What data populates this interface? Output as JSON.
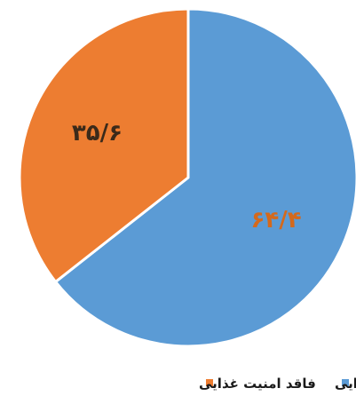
{
  "chart_data": {
    "type": "pie",
    "slices": [
      {
        "label": "دارای امنیت غذایی",
        "value": 64.4,
        "value_label": "۶۴/۴",
        "color": "#5b9bd5",
        "label_color": "#d4691c"
      },
      {
        "label": "فاقد امنیت غذایی",
        "value": 35.6,
        "value_label": "۳۵/۶",
        "color": "#ed7d31",
        "label_color": "#3b2a1a"
      }
    ],
    "start_angle_deg": 0,
    "direction": "clockwise",
    "legend_position": "bottom"
  }
}
